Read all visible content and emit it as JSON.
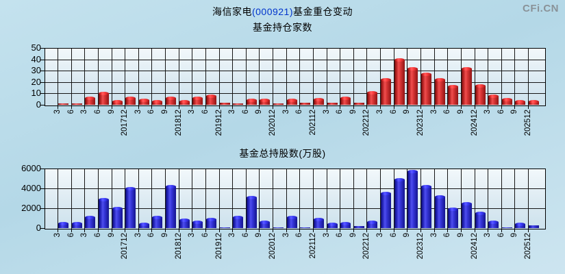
{
  "header": {
    "title_company": "海信家电",
    "title_code": "(000921)",
    "title_suffix": "基金重仓变动",
    "logo": "CFi.CN"
  },
  "colors": {
    "background": "#b8dce9",
    "red_bar": "#e04040",
    "blue_bar": "#4040e0",
    "stock_code_text": "#0033cc",
    "grid": "#141414"
  },
  "chart_data": [
    {
      "type": "bar",
      "title": "基金持仓家数",
      "series_color": "red",
      "ylim": [
        0,
        50
      ],
      "yticks": [
        0,
        10,
        20,
        30,
        40,
        50
      ],
      "grid": true,
      "categories": [
        "3",
        "6",
        "3",
        "6",
        "9",
        "201712",
        "3",
        "6",
        "9",
        "201812",
        "3",
        "6",
        "201912",
        "3",
        "6",
        "9",
        "202012",
        "3",
        "6",
        "202112",
        "3",
        "6",
        "9",
        "202212",
        "3",
        "6",
        "9",
        "202312",
        "3",
        "6",
        "9",
        "202412",
        "3",
        "6",
        "9",
        "202512"
      ],
      "values": [
        1,
        1,
        6,
        10,
        3,
        6,
        4,
        3,
        6,
        3,
        6,
        8,
        2,
        1,
        4,
        4,
        1,
        4,
        2,
        5,
        2,
        6,
        2,
        11,
        22,
        40,
        32,
        27,
        22,
        16,
        32,
        17,
        8,
        5,
        3,
        3
      ]
    },
    {
      "type": "bar",
      "title": "基金总持股数(万股)",
      "series_color": "blue",
      "ylim": [
        0,
        6000
      ],
      "yticks": [
        0,
        2000,
        4000,
        6000
      ],
      "grid": true,
      "categories": [
        "3",
        "6",
        "3",
        "6",
        "9",
        "201712",
        "3",
        "6",
        "9",
        "201812",
        "3",
        "6",
        "201912",
        "3",
        "6",
        "9",
        "202012",
        "3",
        "6",
        "202112",
        "3",
        "6",
        "9",
        "202212",
        "3",
        "6",
        "9",
        "202312",
        "3",
        "6",
        "9",
        "202412",
        "3",
        "6",
        "9",
        "202512"
      ],
      "values": [
        500,
        500,
        1100,
        2900,
        2000,
        4000,
        400,
        1100,
        4200,
        800,
        600,
        900,
        30,
        1100,
        3100,
        600,
        30,
        1100,
        100,
        900,
        400,
        500,
        200,
        600,
        3500,
        4900,
        5700,
        4200,
        3200,
        1900,
        2500,
        1500,
        600,
        100,
        400,
        250
      ]
    }
  ]
}
